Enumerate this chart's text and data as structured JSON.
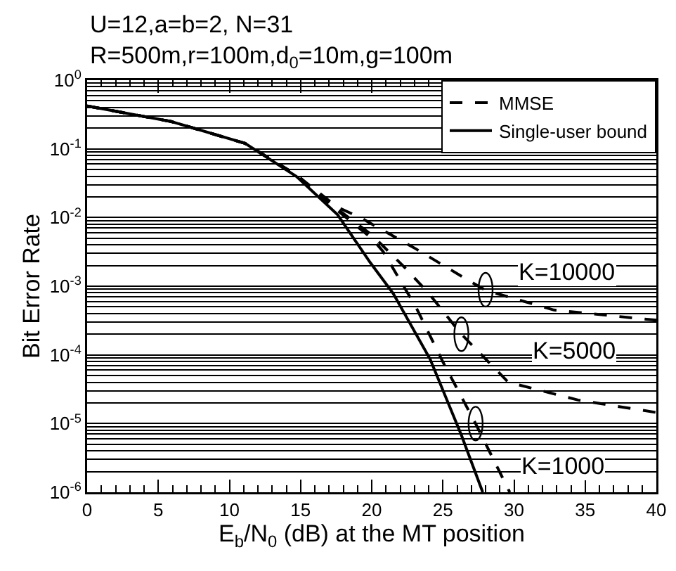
{
  "chart_data": {
    "type": "line",
    "title": "U=12,a=b=2, N=31",
    "subtitle": "R=500m,r=100m,d$_{0}$=10m,g=100m",
    "xlabel": "E$_{b}$/N$_{0}$ (dB) at the MT position",
    "ylabel": "Bit Error Rate",
    "series": [
      {
        "name": "MMSE",
        "color": "#000000",
        "line_style": "dashed",
        "x": [
          0,
          5.9,
          11.1,
          14.7,
          17.6,
          20,
          20.8,
          23.1,
          25,
          27.3,
          29.7
        ],
        "values": [
          0.42,
          0.25,
          0.12,
          0.0417,
          0.0126,
          0.005,
          0.0032,
          0.0005,
          7.9e-05,
          1e-05,
          1e-06
        ]
      },
      {
        "color": "#000000",
        "line_style": "dashed",
        "x": [
          0,
          5.9,
          11.1,
          14.7,
          17.6,
          20,
          22.4,
          24,
          26.3,
          29.6,
          34.5,
          40
        ],
        "values": [
          0.42,
          0.25,
          0.12,
          0.0417,
          0.0132,
          0.0056,
          0.0018,
          0.00079,
          0.0002,
          4e-05,
          2.2e-05,
          1.45e-05
        ]
      },
      {
        "color": "#000000",
        "line_style": "dashed",
        "x": [
          0,
          5.9,
          11.1,
          14.7,
          17.6,
          19.2,
          23.1,
          26.3,
          28,
          32.8,
          40
        ],
        "values": [
          0.42,
          0.25,
          0.12,
          0.0417,
          0.0141,
          0.01,
          0.0035,
          0.0014,
          0.00087,
          0.00045,
          0.00032
        ]
      },
      {
        "name": "Single-user bound",
        "color": "#000000",
        "line_style": "solid",
        "x": [
          0,
          5.9,
          11.1,
          14.7,
          17.6,
          19.9,
          21.5,
          24.1,
          26.3,
          27.8
        ],
        "values": [
          0.42,
          0.25,
          0.12,
          0.0398,
          0.011,
          0.0022,
          0.00079,
          8.7e-05,
          6.8e-06,
          1e-06
        ]
      }
    ],
    "log": "y",
    "xlim": [
      0,
      40
    ],
    "xticks": [
      0,
      5,
      10,
      15,
      20,
      25,
      30,
      35,
      40
    ],
    "ylim": [
      1e-06,
      1
    ],
    "yticks": [
      {
        "value": 1e-06,
        "label": "10$^{-6}$"
      },
      {
        "value": 1e-05,
        "label": "10$^{-5}$"
      },
      {
        "value": 0.0001,
        "label": "10$^{-4}$"
      },
      {
        "value": 0.001,
        "label": "10$^{-3}$"
      },
      {
        "value": 0.01,
        "label": "10$^{-2}$"
      },
      {
        "value": 0.1,
        "label": "10$^{-1}$"
      },
      {
        "value": 1,
        "label": "10$^{0}$"
      }
    ],
    "grid": "y",
    "legend": "top right",
    "marker": "none",
    "annotations": [
      {
        "text": "K=10000",
        "x": 28,
        "y": 0.00089
      },
      {
        "text": "K=5000",
        "x": 26.3,
        "y": 0.0002
      },
      {
        "text": "K=1000",
        "x": 27.3,
        "y": 1e-05
      }
    ]
  }
}
